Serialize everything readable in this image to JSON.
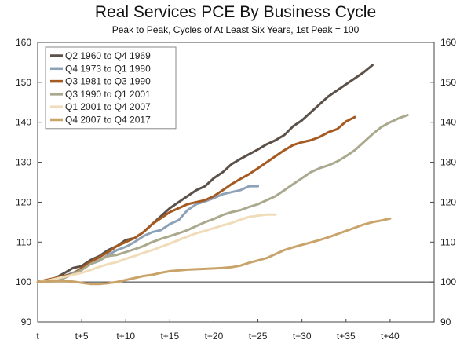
{
  "chart_data": {
    "type": "line",
    "title": "Real Services PCE By Business Cycle",
    "subtitle": "Peak to Peak, Cycles of At Least Six Years, 1st Peak = 100",
    "xlabel": "",
    "ylabel": "",
    "xlim": [
      0,
      45
    ],
    "ylim": [
      90,
      160
    ],
    "x_tick_values": [
      0,
      5,
      10,
      15,
      20,
      25,
      30,
      35,
      40
    ],
    "x_tick_labels": [
      "t",
      "t+5",
      "t+10",
      "t+15",
      "t+20",
      "t+25",
      "t+30",
      "t+35",
      "t+40"
    ],
    "y_ticks": [
      90,
      100,
      110,
      120,
      130,
      140,
      150,
      160
    ],
    "reference_line": 100,
    "legend_position": "top-left",
    "series": [
      {
        "name": "Q2 1960 to Q4 1969",
        "color": "#5c5148",
        "x": [
          0,
          1,
          2,
          3,
          4,
          5,
          6,
          7,
          8,
          9,
          10,
          11,
          12,
          13,
          14,
          15,
          16,
          17,
          18,
          19,
          20,
          21,
          22,
          23,
          24,
          25,
          26,
          27,
          28,
          29,
          30,
          31,
          32,
          33,
          34,
          35,
          36,
          37,
          38
        ],
        "values": [
          100,
          100.5,
          101,
          102.2,
          103.5,
          104,
          105.5,
          106.5,
          108,
          109,
          110.5,
          111,
          112.5,
          114.5,
          116.5,
          118.5,
          120,
          121.5,
          123,
          124,
          126,
          127.5,
          129.5,
          130.8,
          132,
          133.2,
          134.5,
          135.5,
          136.8,
          139,
          140.5,
          142.5,
          144.5,
          146.5,
          148,
          149.5,
          151,
          152.5,
          154.3
        ]
      },
      {
        "name": "Q4 1973 to Q1 1980",
        "color": "#8da2b8",
        "x": [
          0,
          1,
          2,
          3,
          4,
          5,
          6,
          7,
          8,
          9,
          10,
          11,
          12,
          13,
          14,
          15,
          16,
          17,
          18,
          19,
          20,
          21,
          22,
          23,
          24,
          25
        ],
        "values": [
          100,
          100.3,
          100.8,
          101.5,
          102.3,
          103.2,
          104.5,
          105.3,
          106.8,
          108,
          108.8,
          110,
          111.5,
          112.5,
          113,
          114.5,
          115.5,
          118,
          119.5,
          120.2,
          121,
          122,
          122.5,
          123,
          124,
          124
        ]
      },
      {
        "name": "Q3 1981 to Q3 1990",
        "color": "#a55a22",
        "x": [
          0,
          1,
          2,
          3,
          4,
          5,
          6,
          7,
          8,
          9,
          10,
          11,
          12,
          13,
          14,
          15,
          16,
          17,
          18,
          19,
          20,
          21,
          22,
          23,
          24,
          25,
          26,
          27,
          28,
          29,
          30,
          31,
          32,
          33,
          34,
          35,
          36
        ],
        "values": [
          100,
          100.5,
          101,
          101.5,
          102,
          103.5,
          105,
          106.2,
          107.5,
          109,
          110,
          111,
          112.5,
          114.5,
          116,
          117.5,
          118.5,
          119.5,
          120,
          120.5,
          121.5,
          123,
          124.5,
          125.8,
          127,
          128.5,
          130,
          131.5,
          133,
          134.3,
          135,
          135.5,
          136.3,
          137.5,
          138.3,
          140.2,
          141.3
        ]
      },
      {
        "name": "Q3 1990 to Q1 2001",
        "color": "#aaa98e",
        "x": [
          0,
          1,
          2,
          3,
          4,
          5,
          6,
          7,
          8,
          9,
          10,
          11,
          12,
          13,
          14,
          15,
          16,
          17,
          18,
          19,
          20,
          21,
          22,
          23,
          24,
          25,
          26,
          27,
          28,
          29,
          30,
          31,
          32,
          33,
          34,
          35,
          36,
          37,
          38,
          39,
          40,
          41,
          42
        ],
        "values": [
          100,
          100.2,
          100.2,
          101,
          102,
          103,
          104.5,
          105.5,
          106.5,
          106.8,
          107.5,
          108.2,
          109,
          110,
          110.8,
          111.5,
          112.2,
          113,
          114,
          115,
          115.8,
          116.8,
          117.5,
          118,
          118.8,
          119.5,
          120.5,
          121.5,
          123,
          124.5,
          126,
          127.5,
          128.5,
          129.2,
          130.2,
          131.5,
          133,
          135,
          137,
          138.8,
          140,
          141,
          141.8
        ]
      },
      {
        "name": "Q1 2001 to Q4 2007",
        "color": "#f0dcb8",
        "x": [
          0,
          1,
          2,
          3,
          4,
          5,
          6,
          7,
          8,
          9,
          10,
          11,
          12,
          13,
          14,
          15,
          16,
          17,
          18,
          19,
          20,
          21,
          22,
          23,
          24,
          25,
          26,
          27
        ],
        "values": [
          100,
          100.3,
          100.8,
          101.3,
          101.8,
          102.3,
          103,
          103.8,
          104.5,
          105,
          105.8,
          106.5,
          107.3,
          108,
          108.8,
          109.6,
          110.5,
          111.4,
          112.2,
          112.8,
          113.5,
          114.2,
          114.8,
          115.6,
          116.3,
          116.6,
          116.9,
          116.9
        ]
      },
      {
        "name": "Q4 2007 to Q4 2017",
        "color": "#c9a46a",
        "x": [
          0,
          1,
          2,
          3,
          4,
          5,
          6,
          7,
          8,
          9,
          10,
          11,
          12,
          13,
          14,
          15,
          16,
          17,
          18,
          19,
          20,
          21,
          22,
          23,
          24,
          25,
          26,
          27,
          28,
          29,
          30,
          31,
          32,
          33,
          34,
          35,
          36,
          37,
          38,
          39,
          40
        ],
        "values": [
          100,
          100.1,
          100.2,
          100.2,
          100.1,
          99.8,
          99.5,
          99.5,
          99.7,
          100,
          100.5,
          101,
          101.5,
          101.8,
          102.3,
          102.7,
          102.9,
          103.1,
          103.2,
          103.3,
          103.4,
          103.5,
          103.7,
          104.1,
          104.8,
          105.4,
          106,
          107,
          108,
          108.7,
          109.3,
          109.9,
          110.5,
          111.2,
          112,
          112.8,
          113.6,
          114.4,
          115,
          115.4,
          115.9
        ]
      }
    ]
  }
}
